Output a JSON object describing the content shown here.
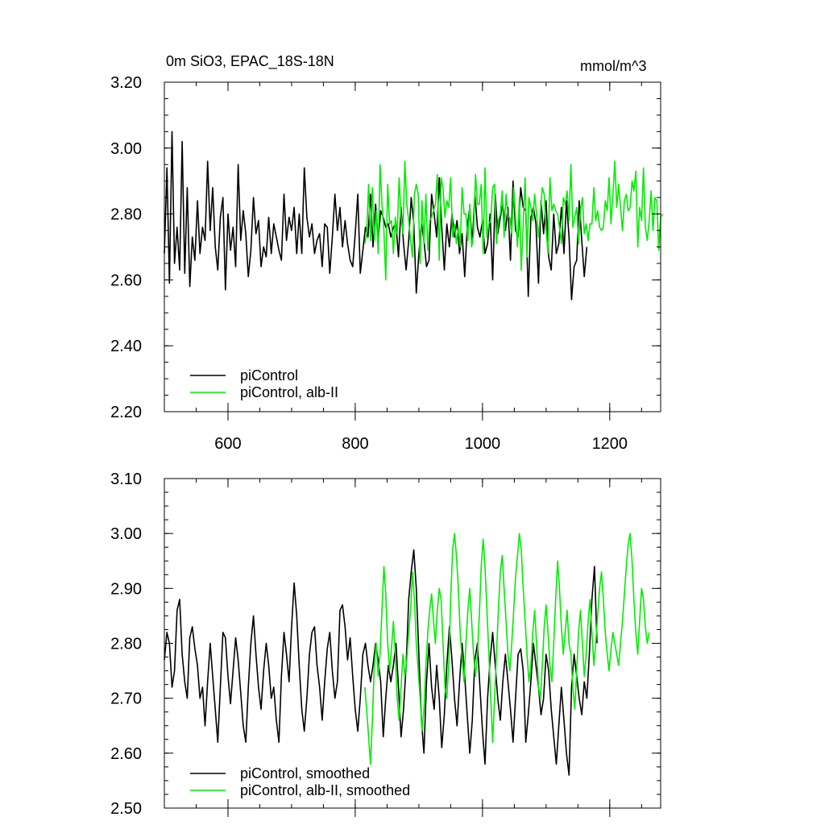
{
  "header": {
    "title": "0m SiO3, EPAC_18S-18N",
    "units": "mmol/m^3"
  },
  "colors": {
    "piControl": "#000000",
    "albII": "#00ee00"
  },
  "chart_data": [
    {
      "type": "line",
      "title": "0m SiO3, EPAC_18S-18N",
      "units": "mmol/m^3",
      "xlim": [
        500,
        1280
      ],
      "ylim": [
        2.2,
        3.2
      ],
      "xticks": [
        600,
        800,
        1000,
        1200
      ],
      "xtick_labels": [
        "600",
        "800",
        "1000",
        "1200"
      ],
      "yticks": [
        2.2,
        2.4,
        2.6,
        2.8,
        3.0,
        3.2
      ],
      "ytick_labels": [
        "2.20",
        "2.40",
        "2.60",
        "2.80",
        "3.00",
        "3.20"
      ],
      "legend": "bottom-left",
      "series": [
        {
          "name": "piControl",
          "color": "#000000",
          "x_start": 500,
          "x_end": 1180,
          "step": 4,
          "values": [
            2.68,
            2.94,
            2.59,
            3.05,
            2.65,
            2.76,
            2.63,
            3.02,
            2.62,
            2.88,
            2.58,
            2.73,
            2.66,
            2.84,
            2.68,
            2.76,
            2.72,
            2.96,
            2.75,
            2.88,
            2.7,
            2.63,
            2.79,
            2.85,
            2.57,
            2.8,
            2.69,
            2.76,
            2.64,
            2.95,
            2.72,
            2.81,
            2.74,
            2.61,
            2.69,
            2.85,
            2.74,
            2.78,
            2.64,
            2.7,
            2.67,
            2.79,
            2.68,
            2.77,
            2.73,
            2.69,
            2.66,
            2.86,
            2.72,
            2.79,
            2.75,
            2.82,
            2.68,
            2.8,
            2.68,
            2.94,
            2.79,
            2.73,
            2.77,
            2.68,
            2.72,
            2.74,
            2.64,
            2.77,
            2.76,
            2.62,
            2.73,
            2.86,
            2.75,
            2.82,
            2.7,
            2.78,
            2.71,
            2.66,
            2.64,
            2.74,
            2.86,
            2.62,
            2.69,
            2.76,
            2.73,
            2.86,
            2.7,
            2.83,
            2.72,
            2.81,
            2.79,
            2.76,
            2.77,
            2.73,
            2.76,
            2.77,
            2.67,
            2.82,
            2.71,
            2.63,
            2.72,
            2.85,
            2.77,
            2.56,
            2.68,
            2.77,
            2.72,
            2.64,
            2.66,
            2.86,
            2.8,
            2.73,
            2.91,
            2.76,
            2.63,
            2.77,
            2.7,
            2.8,
            2.73,
            2.78,
            2.68,
            2.74,
            2.61,
            2.76,
            2.82,
            2.71,
            2.86,
            2.76,
            2.73,
            2.78,
            2.68,
            2.71,
            2.8,
            2.6,
            2.86,
            2.74,
            2.79,
            2.83,
            2.75,
            2.82,
            2.66,
            2.9,
            2.75,
            2.73,
            2.88,
            2.82,
            2.81,
            2.55,
            2.79,
            2.82,
            2.77,
            2.59,
            2.84,
            2.74,
            2.84,
            2.67,
            2.63,
            2.8,
            2.68,
            2.71,
            2.82,
            2.68,
            2.84,
            2.73,
            2.54,
            2.64,
            2.66,
            2.84,
            2.72,
            2.61,
            2.7
          ]
        },
        {
          "name": "piControl, alb-II",
          "color": "#00ee00",
          "x_start": 815,
          "x_end": 1275,
          "step": 3,
          "values": [
            2.71,
            2.74,
            2.89,
            2.72,
            2.88,
            2.72,
            2.81,
            2.68,
            2.95,
            2.83,
            2.75,
            2.6,
            2.89,
            2.77,
            2.78,
            2.68,
            2.79,
            2.74,
            2.91,
            2.79,
            2.74,
            2.96,
            2.83,
            2.78,
            2.72,
            2.67,
            2.86,
            2.89,
            2.86,
            2.65,
            2.84,
            2.71,
            2.86,
            2.69,
            2.78,
            2.79,
            2.81,
            2.83,
            2.92,
            2.66,
            2.91,
            2.88,
            2.79,
            2.84,
            2.82,
            2.91,
            2.73,
            2.77,
            2.71,
            2.76,
            2.7,
            2.88,
            2.8,
            2.8,
            2.72,
            2.83,
            2.7,
            2.74,
            2.92,
            2.83,
            2.83,
            2.89,
            2.68,
            2.94,
            2.73,
            2.77,
            2.78,
            2.88,
            2.89,
            2.71,
            2.78,
            2.8,
            2.87,
            2.73,
            2.86,
            2.79,
            2.79,
            2.74,
            2.88,
            2.79,
            2.7,
            2.85,
            2.63,
            2.77,
            2.91,
            2.67,
            2.85,
            2.82,
            2.78,
            2.86,
            2.8,
            2.73,
            2.8,
            2.88,
            2.86,
            2.75,
            2.68,
            2.91,
            2.81,
            2.83,
            2.81,
            2.8,
            2.76,
            2.71,
            2.85,
            2.83,
            2.87,
            2.78,
            2.95,
            2.76,
            2.79,
            2.82,
            2.71,
            2.81,
            2.85,
            2.74,
            2.77,
            2.72,
            2.77,
            2.77,
            2.88,
            2.78,
            2.81,
            2.76,
            2.75,
            2.76,
            2.84,
            2.81,
            2.91,
            2.77,
            2.86,
            2.96,
            2.82,
            2.89,
            2.82,
            2.75,
            2.84,
            2.86,
            2.81,
            2.82,
            2.9,
            2.87,
            2.93,
            2.7,
            2.82,
            2.78,
            2.94,
            2.76,
            2.72,
            2.78,
            2.87,
            2.75,
            2.85,
            2.84,
            2.69,
            2.79,
            2.8
          ]
        }
      ]
    },
    {
      "type": "line",
      "xlim": [
        500,
        1280
      ],
      "ylim": [
        2.5,
        3.1
      ],
      "xticks": [
        600,
        800,
        1000,
        1200
      ],
      "yticks": [
        2.5,
        2.6,
        2.7,
        2.8,
        2.9,
        3.0,
        3.1
      ],
      "ytick_labels": [
        "2.50",
        "2.60",
        "2.70",
        "2.80",
        "2.90",
        "3.00",
        "3.10"
      ],
      "legend": "bottom-left",
      "series": [
        {
          "name": "piControl, smoothed",
          "color": "#000000",
          "x_start": 500,
          "x_end": 1180,
          "step": 4,
          "values": [
            2.77,
            2.82,
            2.8,
            2.72,
            2.75,
            2.86,
            2.88,
            2.78,
            2.73,
            2.7,
            2.81,
            2.83,
            2.79,
            2.76,
            2.7,
            2.72,
            2.65,
            2.73,
            2.8,
            2.74,
            2.68,
            2.62,
            2.72,
            2.82,
            2.81,
            2.74,
            2.69,
            2.75,
            2.81,
            2.77,
            2.71,
            2.65,
            2.62,
            2.72,
            2.8,
            2.85,
            2.78,
            2.72,
            2.68,
            2.75,
            2.8,
            2.76,
            2.7,
            2.72,
            2.66,
            2.62,
            2.74,
            2.82,
            2.78,
            2.73,
            2.83,
            2.91,
            2.85,
            2.76,
            2.68,
            2.64,
            2.7,
            2.78,
            2.82,
            2.83,
            2.76,
            2.72,
            2.66,
            2.73,
            2.79,
            2.82,
            2.75,
            2.7,
            2.73,
            2.86,
            2.87,
            2.83,
            2.77,
            2.81,
            2.74,
            2.68,
            2.64,
            2.7,
            2.78,
            2.8,
            2.76,
            2.73,
            2.76,
            2.8,
            2.77,
            2.73,
            2.63,
            2.7,
            2.76,
            2.73,
            2.76,
            2.8,
            2.72,
            2.63,
            2.68,
            2.76,
            2.88,
            2.93,
            2.97,
            2.9,
            2.78,
            2.66,
            2.6,
            2.73,
            2.8,
            2.72,
            2.68,
            2.76,
            2.7,
            2.61,
            2.67,
            2.76,
            2.83,
            2.77,
            2.7,
            2.65,
            2.73,
            2.8,
            2.74,
            2.67,
            2.6,
            2.66,
            2.77,
            2.8,
            2.72,
            2.64,
            2.58,
            2.7,
            2.77,
            2.82,
            2.76,
            2.7,
            2.66,
            2.73,
            2.78,
            2.73,
            2.68,
            2.62,
            2.7,
            2.78,
            2.79,
            2.75,
            2.62,
            2.67,
            2.73,
            2.8,
            2.76,
            2.72,
            2.67,
            2.7,
            2.78,
            2.75,
            2.68,
            2.63,
            2.58,
            2.65,
            2.72,
            2.66,
            2.6,
            2.56,
            2.72,
            2.78,
            2.74,
            2.7,
            2.67,
            2.73,
            2.7,
            2.78,
            2.88,
            2.94,
            2.8
          ]
        },
        {
          "name": "piControl, alb-II, smoothed",
          "color": "#00ee00",
          "x_start": 815,
          "x_end": 1275,
          "step": 3,
          "values": [
            2.72,
            2.68,
            2.63,
            2.58,
            2.66,
            2.76,
            2.8,
            2.74,
            2.78,
            2.86,
            2.94,
            2.89,
            2.8,
            2.75,
            2.79,
            2.84,
            2.78,
            2.7,
            2.66,
            2.72,
            2.78,
            2.74,
            2.77,
            2.82,
            2.86,
            2.93,
            2.88,
            2.8,
            2.75,
            2.7,
            2.64,
            2.68,
            2.76,
            2.82,
            2.86,
            2.89,
            2.84,
            2.8,
            2.86,
            2.9,
            2.88,
            2.8,
            2.72,
            2.7,
            2.76,
            2.88,
            2.97,
            3.0,
            2.96,
            2.9,
            2.82,
            2.77,
            2.73,
            2.8,
            2.86,
            2.9,
            2.84,
            2.78,
            2.74,
            2.78,
            2.85,
            2.94,
            2.99,
            2.94,
            2.86,
            2.78,
            2.7,
            2.62,
            2.7,
            2.78,
            2.86,
            2.93,
            2.96,
            2.9,
            2.84,
            2.78,
            2.75,
            2.8,
            2.86,
            2.92,
            2.96,
            3.0,
            2.97,
            2.9,
            2.84,
            2.78,
            2.73,
            2.76,
            2.82,
            2.86,
            2.8,
            2.72,
            2.7,
            2.76,
            2.83,
            2.87,
            2.82,
            2.76,
            2.73,
            2.8,
            2.88,
            2.95,
            2.9,
            2.83,
            2.78,
            2.82,
            2.86,
            2.8,
            2.78,
            2.72,
            2.68,
            2.75,
            2.82,
            2.86,
            2.8,
            2.74,
            2.78,
            2.84,
            2.88,
            2.82,
            2.76,
            2.8,
            2.85,
            2.9,
            2.93,
            2.88,
            2.82,
            2.78,
            2.75,
            2.79,
            2.82,
            2.8,
            2.78,
            2.76,
            2.8,
            2.84,
            2.89,
            2.94,
            2.98,
            3.0,
            2.95,
            2.88,
            2.82,
            2.78,
            2.84,
            2.9,
            2.88,
            2.83,
            2.8,
            2.82
          ]
        }
      ]
    }
  ]
}
